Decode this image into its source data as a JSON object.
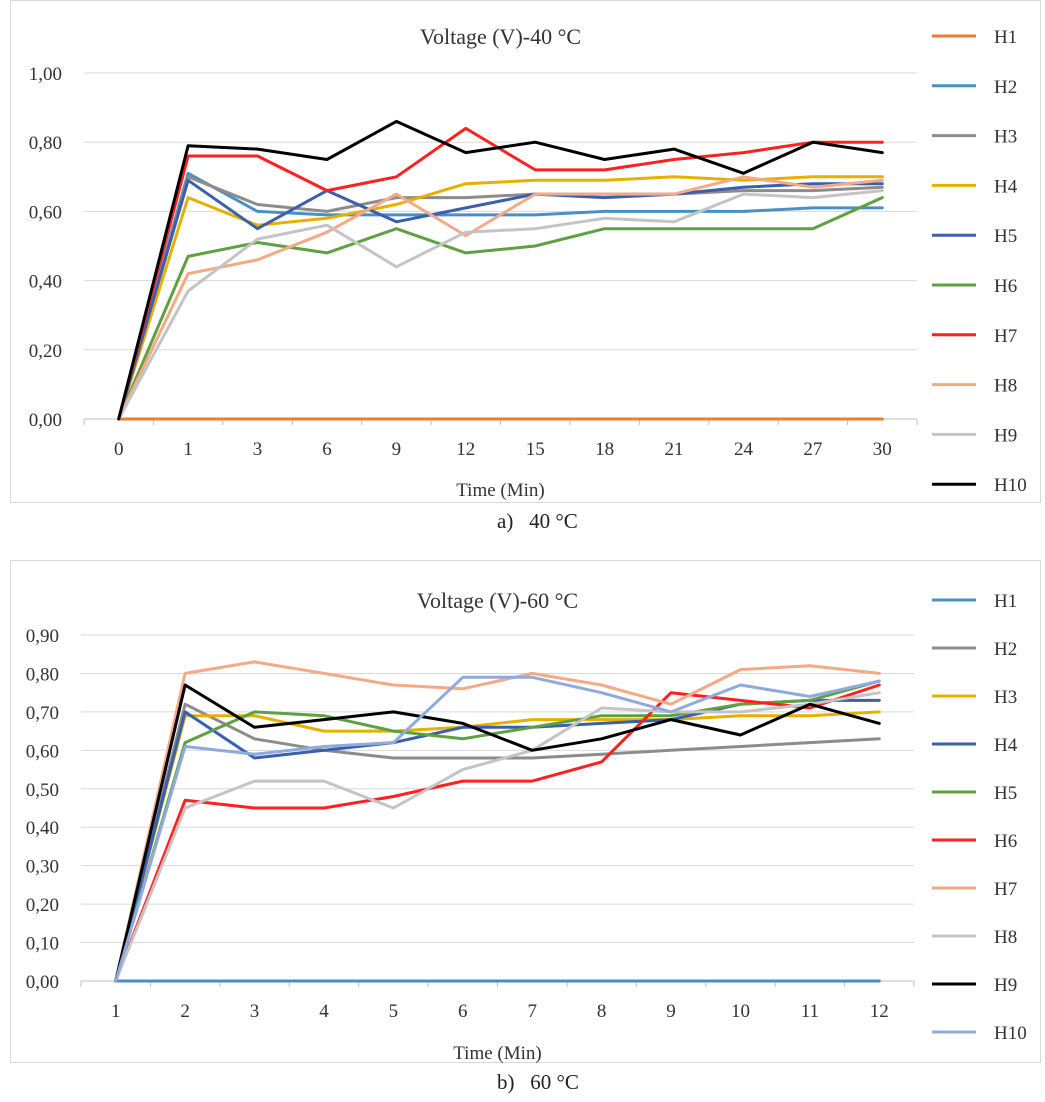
{
  "chart_data": [
    {
      "type": "line",
      "title": "Voltage (V)-40 °C",
      "xlabel": "Time (Min)",
      "ylabel": "",
      "caption": "a)   40 °C",
      "categories": [
        "0",
        "1",
        "3",
        "6",
        "9",
        "12",
        "15",
        "18",
        "21",
        "24",
        "27",
        "30"
      ],
      "ylim": [
        0,
        1.0
      ],
      "yticks": [
        "0,00",
        "0,20",
        "0,40",
        "0,60",
        "0,80",
        "1,00"
      ],
      "grid": true,
      "legend_position": "right",
      "series": [
        {
          "name": "H1",
          "color": "#ed7d31",
          "values": [
            0,
            0,
            0,
            0,
            0,
            0,
            0,
            0,
            0,
            0,
            0,
            0
          ]
        },
        {
          "name": "H2",
          "color": "#4a90c4",
          "values": [
            0,
            0.71,
            0.6,
            0.59,
            0.59,
            0.59,
            0.59,
            0.6,
            0.6,
            0.6,
            0.61,
            0.61
          ]
        },
        {
          "name": "H3",
          "color": "#8c8c8c",
          "values": [
            0,
            0.7,
            0.62,
            0.6,
            0.64,
            0.64,
            0.65,
            0.65,
            0.65,
            0.66,
            0.66,
            0.67
          ]
        },
        {
          "name": "H4",
          "color": "#e6b000",
          "values": [
            0,
            0.64,
            0.56,
            0.58,
            0.62,
            0.68,
            0.69,
            0.69,
            0.7,
            0.69,
            0.7,
            0.7
          ]
        },
        {
          "name": "H5",
          "color": "#3a5fad",
          "values": [
            0,
            0.69,
            0.55,
            0.66,
            0.57,
            0.61,
            0.65,
            0.64,
            0.65,
            0.67,
            0.68,
            0.68
          ]
        },
        {
          "name": "H6",
          "color": "#5fa040",
          "values": [
            0,
            0.47,
            0.51,
            0.48,
            0.55,
            0.48,
            0.5,
            0.55,
            0.55,
            0.55,
            0.55,
            0.64
          ]
        },
        {
          "name": "H7",
          "color": "#ff2020",
          "values": [
            0,
            0.76,
            0.76,
            0.66,
            0.7,
            0.84,
            0.72,
            0.72,
            0.75,
            0.77,
            0.8,
            0.8
          ]
        },
        {
          "name": "H8",
          "color": "#f4a987",
          "values": [
            0,
            0.42,
            0.46,
            0.54,
            0.65,
            0.53,
            0.65,
            0.65,
            0.65,
            0.7,
            0.67,
            0.69
          ]
        },
        {
          "name": "H9",
          "color": "#c4c4c4",
          "values": [
            0,
            0.37,
            0.52,
            0.56,
            0.44,
            0.54,
            0.55,
            0.58,
            0.57,
            0.65,
            0.64,
            0.66
          ]
        },
        {
          "name": "H10",
          "color": "#000000",
          "values": [
            0,
            0.79,
            0.78,
            0.75,
            0.86,
            0.77,
            0.8,
            0.75,
            0.78,
            0.71,
            0.8,
            0.77
          ]
        }
      ]
    },
    {
      "type": "line",
      "title": "Voltage (V)-60 °C",
      "xlabel": "Time (Min)",
      "ylabel": "",
      "caption": "b)   60 °C",
      "categories": [
        "1",
        "2",
        "3",
        "4",
        "5",
        "6",
        "7",
        "8",
        "9",
        "10",
        "11",
        "12"
      ],
      "ylim": [
        0,
        0.9
      ],
      "yticks": [
        "0,00",
        "0,10",
        "0,20",
        "0,30",
        "0,40",
        "0,50",
        "0,60",
        "0,70",
        "0,80",
        "0,90"
      ],
      "grid": true,
      "legend_position": "right",
      "series": [
        {
          "name": "H1",
          "color": "#4a90c4",
          "values": [
            0,
            0,
            0,
            0,
            0,
            0,
            0,
            0,
            0,
            0,
            0,
            0
          ]
        },
        {
          "name": "H2",
          "color": "#8c8c8c",
          "values": [
            0,
            0.72,
            0.63,
            0.6,
            0.58,
            0.58,
            0.58,
            0.59,
            0.6,
            0.61,
            0.62,
            0.63
          ]
        },
        {
          "name": "H3",
          "color": "#e6b000",
          "values": [
            0,
            0.69,
            0.69,
            0.65,
            0.65,
            0.66,
            0.68,
            0.68,
            0.68,
            0.69,
            0.69,
            0.7
          ]
        },
        {
          "name": "H4",
          "color": "#3a5fad",
          "values": [
            0,
            0.7,
            0.58,
            0.6,
            0.62,
            0.66,
            0.66,
            0.67,
            0.68,
            0.72,
            0.73,
            0.73
          ]
        },
        {
          "name": "H5",
          "color": "#5fa040",
          "values": [
            0,
            0.62,
            0.7,
            0.69,
            0.65,
            0.63,
            0.66,
            0.69,
            0.69,
            0.72,
            0.73,
            0.78
          ]
        },
        {
          "name": "H6",
          "color": "#ff2020",
          "values": [
            0,
            0.47,
            0.45,
            0.45,
            0.48,
            0.52,
            0.52,
            0.57,
            0.75,
            0.73,
            0.71,
            0.77
          ]
        },
        {
          "name": "H7",
          "color": "#f4a987",
          "values": [
            0,
            0.8,
            0.83,
            0.8,
            0.77,
            0.76,
            0.8,
            0.77,
            0.72,
            0.81,
            0.82,
            0.8
          ]
        },
        {
          "name": "H8",
          "color": "#c4c4c4",
          "values": [
            0,
            0.45,
            0.52,
            0.52,
            0.45,
            0.55,
            0.6,
            0.71,
            0.7,
            0.7,
            0.72,
            0.75
          ]
        },
        {
          "name": "H9",
          "color": "#000000",
          "values": [
            0,
            0.77,
            0.66,
            0.68,
            0.7,
            0.67,
            0.6,
            0.63,
            0.68,
            0.64,
            0.72,
            0.67
          ]
        },
        {
          "name": "H10",
          "color": "#8faadc",
          "values": [
            0,
            0.61,
            0.59,
            0.61,
            0.62,
            0.79,
            0.79,
            0.75,
            0.7,
            0.77,
            0.74,
            0.78
          ]
        }
      ]
    }
  ]
}
